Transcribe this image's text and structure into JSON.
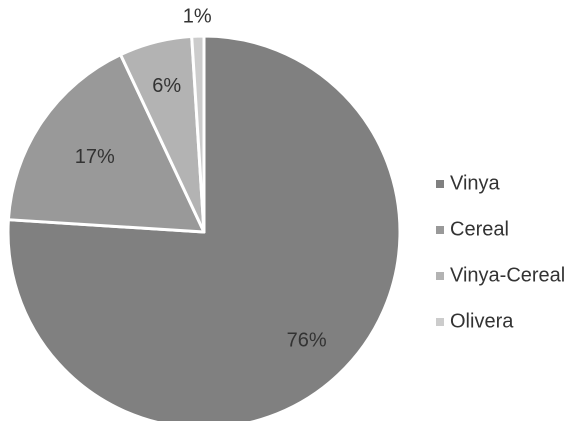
{
  "chart_data": {
    "type": "pie",
    "categories": [
      "Vinya",
      "Cereal",
      "Vinya-Cereal",
      "Olivera"
    ],
    "values": [
      76,
      17,
      6,
      1
    ],
    "labels": [
      "76%",
      "17%",
      "6%",
      "1%"
    ],
    "colors": [
      "#808080",
      "#999999",
      "#b3b3b3",
      "#cccccc"
    ],
    "legend_position": "right",
    "start": "top",
    "direction": "clockwise"
  }
}
